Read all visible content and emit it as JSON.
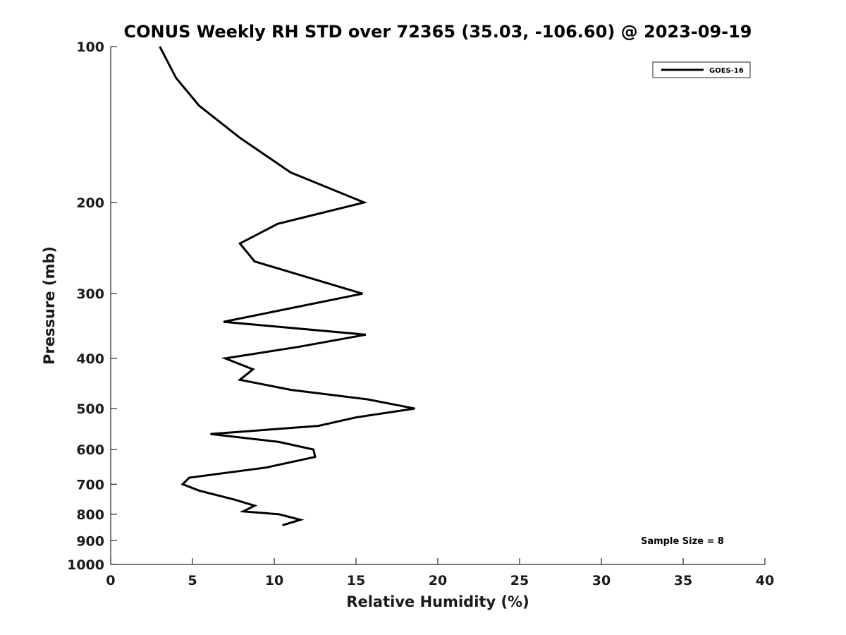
{
  "chart_data": {
    "type": "line",
    "title": "CONUS Weekly RH STD over 72365 (35.03, -106.60) @ 2023-09-19",
    "xlabel": "Relative Humidity (%)",
    "ylabel": "Pressure (mb)",
    "xlim": [
      0,
      40
    ],
    "ylim": [
      100,
      1000
    ],
    "y_scale": "log",
    "y_reversed": true,
    "grid": false,
    "legend_position": "top-right",
    "x_ticks": [
      0,
      5,
      10,
      15,
      20,
      25,
      30,
      35,
      40
    ],
    "y_ticks": [
      100,
      200,
      300,
      400,
      500,
      600,
      700,
      800,
      900,
      1000
    ],
    "series": [
      {
        "name": "GOES-16",
        "color": "#000000",
        "points": [
          [
            3.0,
            100
          ],
          [
            4.0,
            115
          ],
          [
            5.4,
            130
          ],
          [
            7.9,
            150
          ],
          [
            11.0,
            175
          ],
          [
            15.5,
            200
          ],
          [
            10.2,
            220
          ],
          [
            7.9,
            240
          ],
          [
            8.8,
            260
          ],
          [
            15.4,
            300
          ],
          [
            6.9,
            340
          ],
          [
            15.6,
            360
          ],
          [
            11.5,
            380
          ],
          [
            7.0,
            400
          ],
          [
            8.7,
            420
          ],
          [
            7.9,
            440
          ],
          [
            11.0,
            460
          ],
          [
            15.7,
            480
          ],
          [
            18.6,
            500
          ],
          [
            15.0,
            520
          ],
          [
            12.7,
            540
          ],
          [
            6.1,
            560
          ],
          [
            10.3,
            580
          ],
          [
            12.4,
            600
          ],
          [
            12.5,
            620
          ],
          [
            9.5,
            650
          ],
          [
            4.8,
            680
          ],
          [
            4.4,
            700
          ],
          [
            5.4,
            720
          ],
          [
            7.6,
            750
          ],
          [
            8.8,
            770
          ],
          [
            8.1,
            790
          ],
          [
            10.3,
            800
          ],
          [
            11.6,
            820
          ],
          [
            10.5,
            840
          ]
        ]
      }
    ],
    "annotations": [
      "Sample Size = 8"
    ]
  }
}
